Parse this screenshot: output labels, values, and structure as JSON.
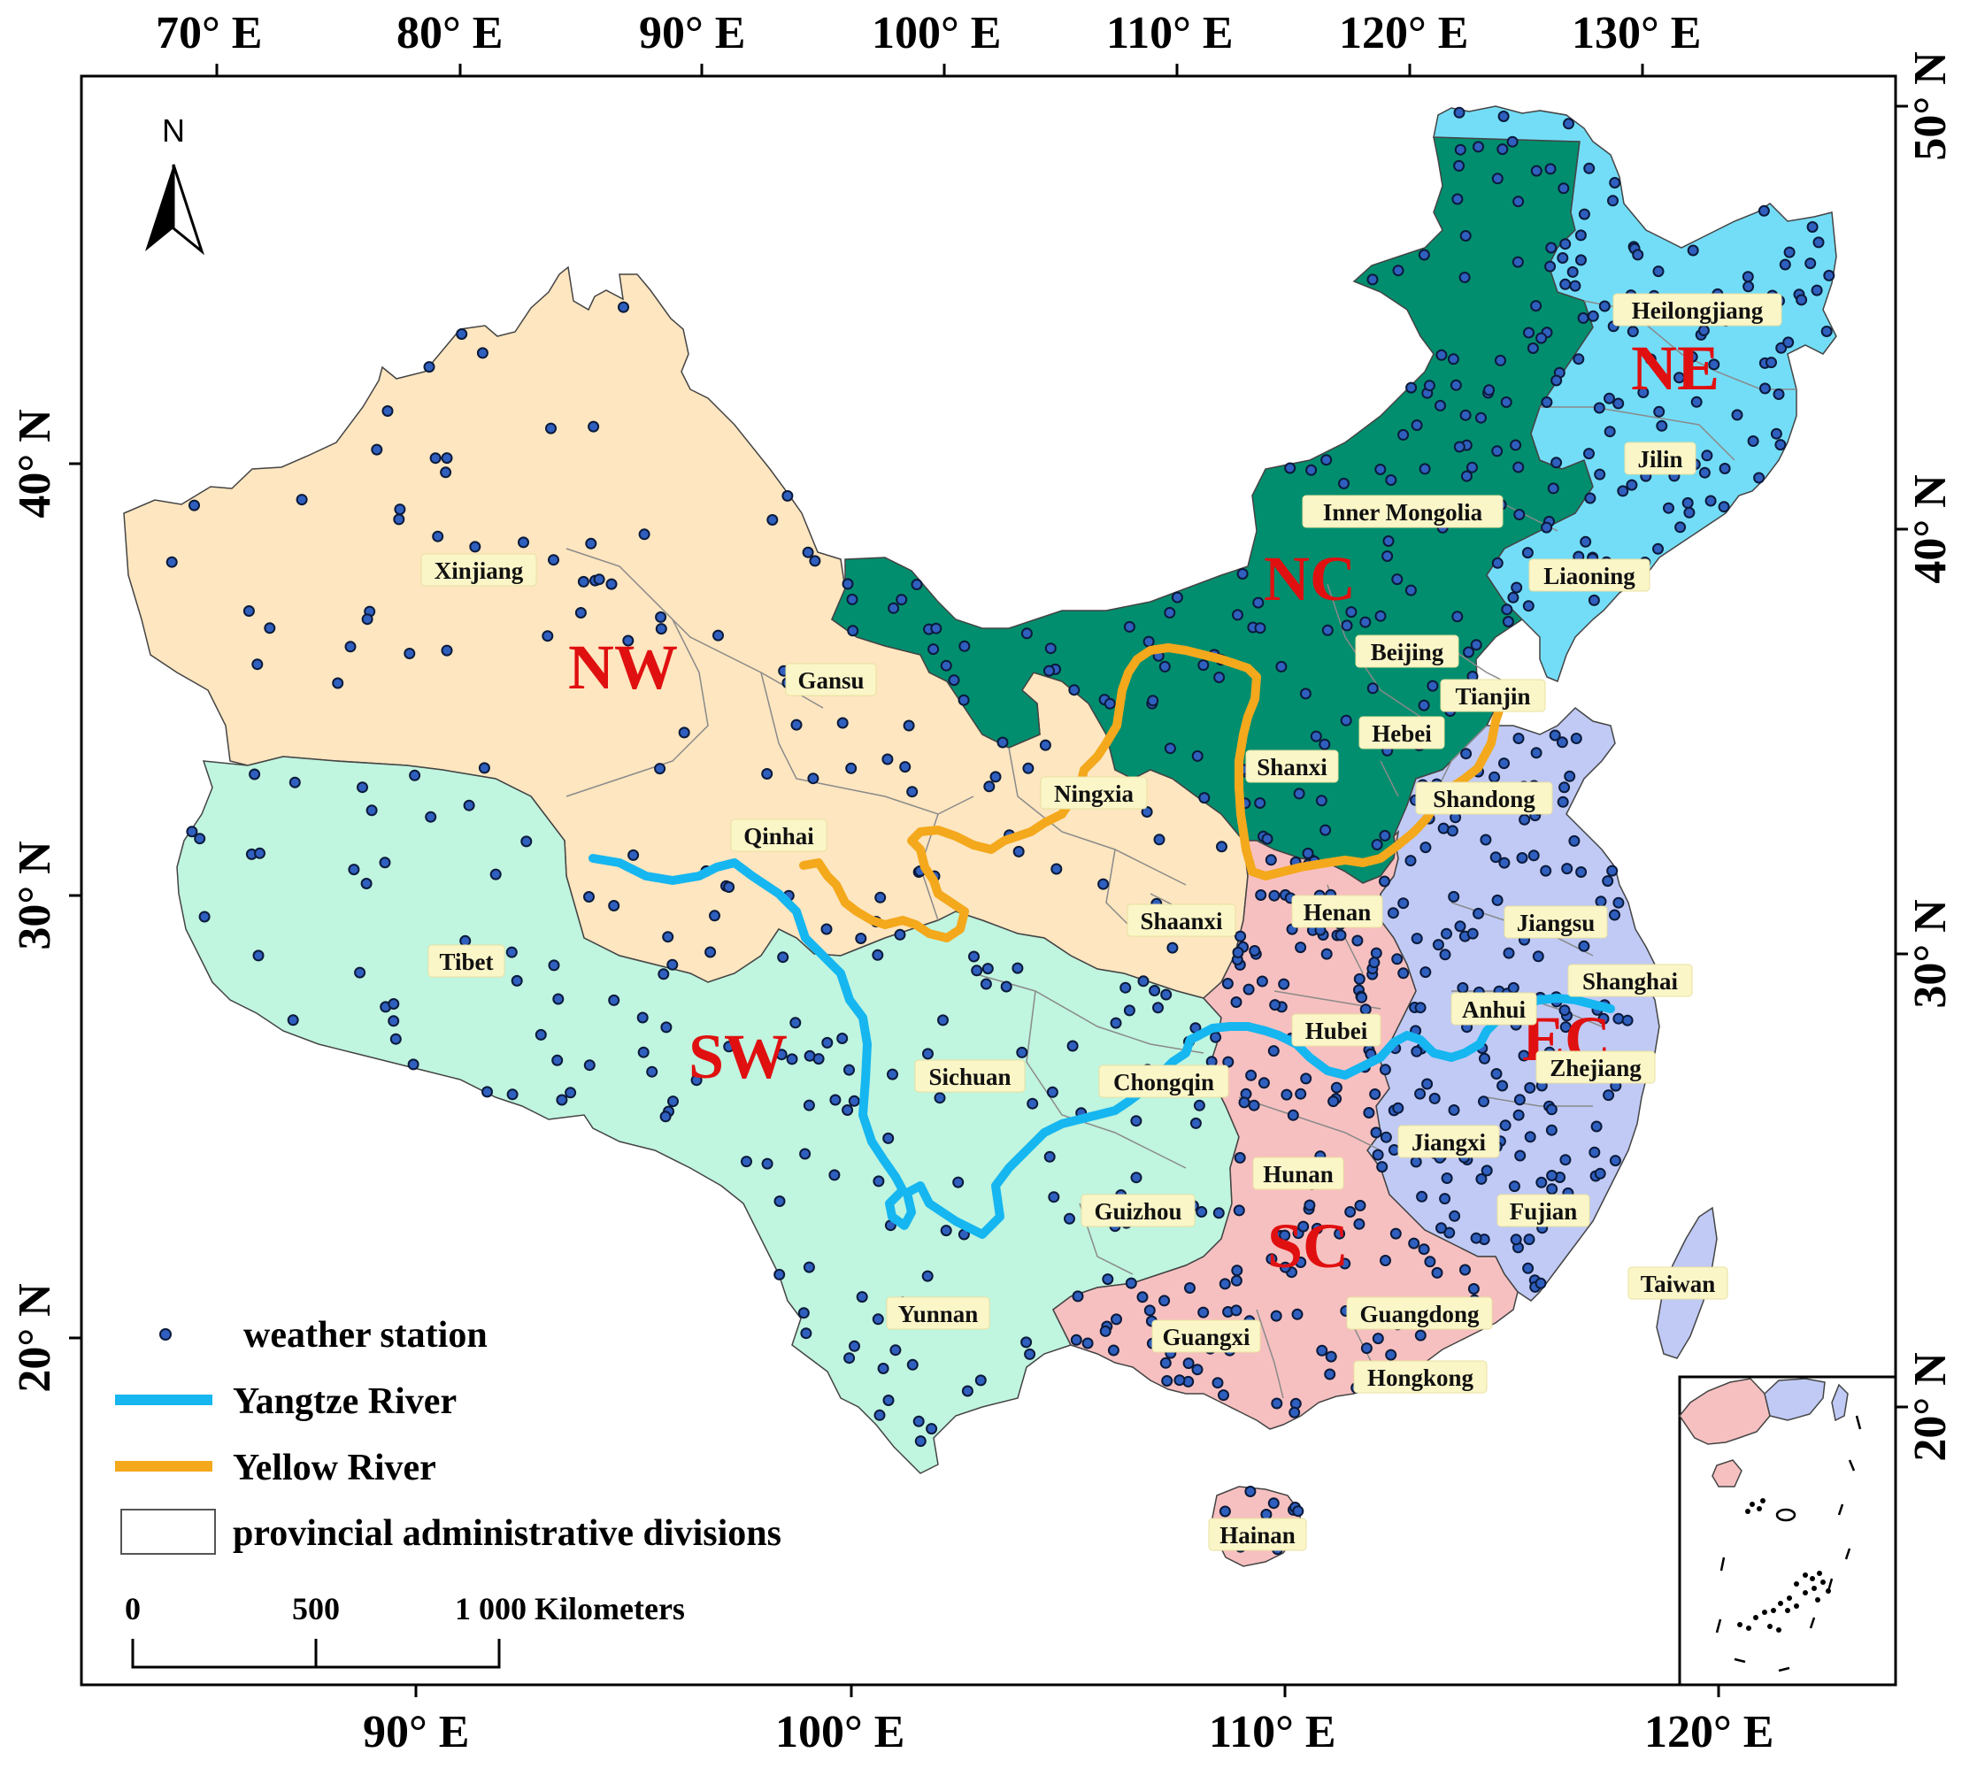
{
  "map": {
    "top_longitude_labels": [
      "70° E",
      "80° E",
      "90° E",
      "100° E",
      "110° E",
      "120° E",
      "130° E"
    ],
    "bottom_longitude_labels": [
      "90° E",
      "100° E",
      "110° E",
      "120° E"
    ],
    "left_latitude_labels": [
      "40° N",
      "30° N",
      "20° N"
    ],
    "right_latitude_labels": [
      "50° N",
      "40° N",
      "30° N",
      "20° N"
    ],
    "north_label": "N",
    "colors": {
      "NE": "#73ddf7",
      "NC": "#008e6e",
      "NW": "#fde6c0",
      "SW": "#c0f5e0",
      "SC": "#f7c0c0",
      "EC": "#c0caf5",
      "station": "#2f5fbf",
      "yangtze": "#16b6f0",
      "yellow": "#f4a81c",
      "region_code": "#e01010"
    },
    "region_codes": {
      "NE": "NE",
      "NC": "NC",
      "NW": "NW",
      "SW": "SW",
      "SC": "SC",
      "EC": "EC"
    },
    "provinces": {
      "heilongjiang": "Heilongjiang",
      "jilin": "Jilin",
      "liaoning": "Liaoning",
      "inner_mongolia": "Inner Mongolia",
      "beijing": "Beijing",
      "tianjin": "Tianjin",
      "hebei": "Hebei",
      "shanxi": "Shanxi",
      "shandong": "Shandong",
      "xinjiang": "Xinjiang",
      "gansu": "Gansu",
      "ningxia": "Ningxia",
      "qinhai": "Qinhai",
      "shaanxi": "Shaanxi",
      "henan": "Henan",
      "jiangsu": "Jiangsu",
      "shanghai": "Shanghai",
      "anhui": "Anhui",
      "hubei": "Hubei",
      "zhejiang": "Zhejiang",
      "tibet": "Tibet",
      "sichuan": "Sichuan",
      "chongqin": "Chongqin",
      "jiangxi": "Jiangxi",
      "hunan": "Hunan",
      "guizhou": "Guizhou",
      "fujian": "Fujian",
      "taiwan": "Taiwan",
      "yunnan": "Yunnan",
      "guangxi": "Guangxi",
      "guangdong": "Guangdong",
      "hongkong": "Hongkong",
      "hainan": "Hainan"
    },
    "legend": {
      "weather_station": "weather station",
      "yangtze_river": "Yangtze River",
      "yellow_river": "Yellow River",
      "provincial": "provincial administrative divisions"
    },
    "scale_bar": {
      "label_0": "0",
      "label_500": "500",
      "label_1000": "1 000 Kilometers"
    }
  }
}
